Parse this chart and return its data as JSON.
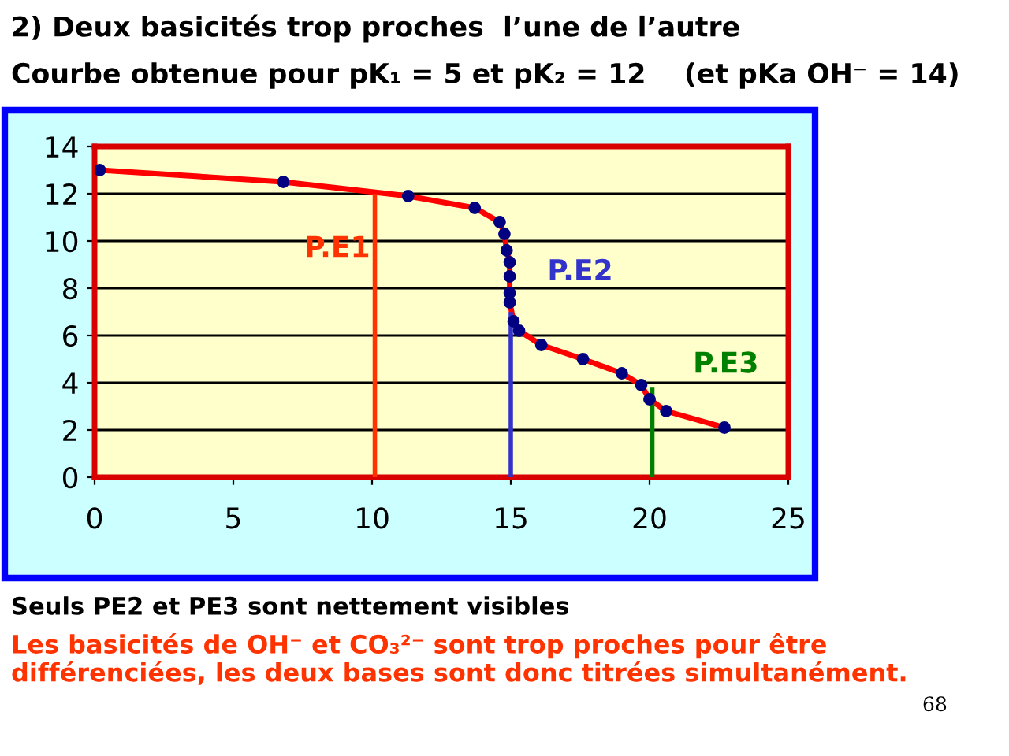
{
  "chart_data": {
    "type": "line",
    "title": "2) Deux basicités trop proches  l’une de l’autre",
    "subtitle": "Courbe obtenue pour pK₁ = 5 et pK₂ = 12    (et pKa OH⁻ = 14)",
    "x": [
      0.19,
      6.8,
      11.3,
      13.7,
      14.6,
      14.77,
      14.85,
      14.96,
      14.96,
      14.96,
      14.96,
      15.1,
      15.3,
      16.1,
      17.6,
      19.0,
      19.7,
      20.0,
      20.6,
      22.7
    ],
    "series": [
      {
        "color": "#ff0000",
        "values": [
          13.0,
          12.5,
          11.9,
          11.4,
          10.8,
          10.3,
          9.6,
          9.1,
          8.5,
          7.8,
          7.4,
          6.6,
          6.2,
          5.6,
          5.0,
          4.4,
          3.9,
          3.3,
          2.8,
          2.1
        ]
      },
      {
        "type": "scatter",
        "color": "#000080",
        "marker": "circle",
        "values": [
          13.0,
          12.5,
          11.9,
          11.4,
          10.8,
          10.3,
          9.6,
          9.1,
          8.5,
          7.8,
          7.4,
          6.6,
          6.2,
          5.6,
          5.0,
          4.4,
          3.9,
          3.3,
          2.8,
          2.1
        ]
      },
      {
        "color": "#ff3300",
        "x": [
          10.1,
          10.1
        ],
        "values": [
          0,
          11.9
        ]
      },
      {
        "color": "#3333cc",
        "x": [
          15.0,
          15.0
        ],
        "values": [
          0,
          6.9
        ]
      },
      {
        "color": "#008000",
        "x": [
          20.1,
          20.1
        ],
        "values": [
          0,
          3.7
        ]
      }
    ],
    "xlim": [
      0,
      25
    ],
    "xticks": [
      0,
      5,
      10,
      15,
      20,
      25
    ],
    "ylim": [
      0,
      14
    ],
    "yticks": [
      0,
      2,
      4,
      6,
      8,
      10,
      12,
      14
    ],
    "grid": "y",
    "annotations": [
      "P.E1",
      "P.E2",
      "P.E3",
      "Seuls PE2 et PE3 sont nettement visibles",
      "Les basicités de OH⁻ et CO₃²⁻ sont trop proches pour être différenciées, les deux bases sont donc titrées simultanément.",
      "68"
    ]
  }
}
